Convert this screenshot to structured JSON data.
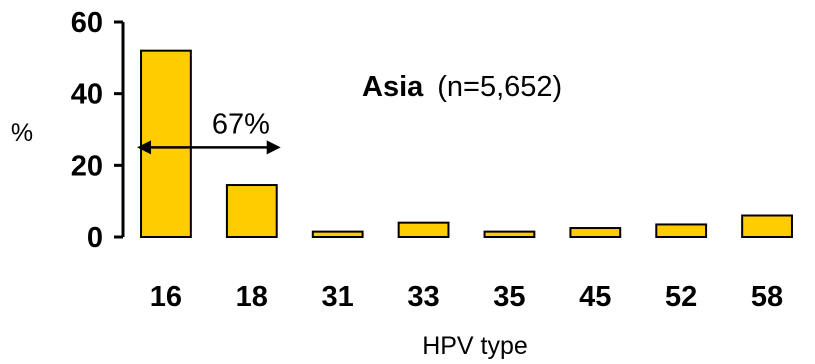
{
  "chart_data": {
    "type": "bar",
    "title_bold": "Asia",
    "title_rest": "(n=5,652)",
    "xlabel": "HPV type",
    "ylabel": "%",
    "categories": [
      "16",
      "18",
      "31",
      "33",
      "35",
      "45",
      "52",
      "58"
    ],
    "values": [
      52,
      14.5,
      1.5,
      4,
      1.5,
      2.5,
      3.5,
      6
    ],
    "ylim": [
      0,
      60
    ],
    "yticks": [
      "0",
      "20",
      "40",
      "60"
    ],
    "grid": false,
    "bar_color": "#FFCC00",
    "annotation": {
      "label": "67%",
      "spans_categories": [
        "16",
        "18"
      ],
      "at_value": 25
    }
  }
}
